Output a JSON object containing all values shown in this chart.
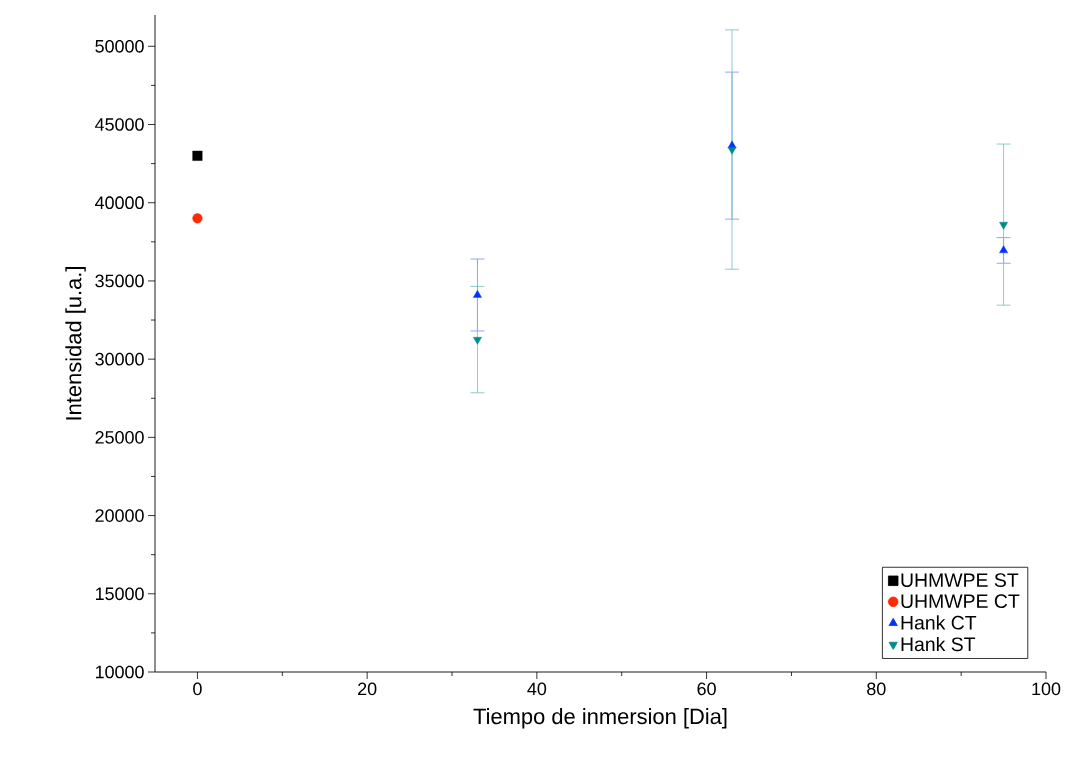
{
  "chart_data": {
    "type": "scatter",
    "xlabel": "Tiempo de inmersion [Dia]",
    "ylabel": "Intensidad [u.a.]",
    "xlim": [
      -5,
      100
    ],
    "ylim": [
      10000,
      52000
    ],
    "xticks": [
      0,
      20,
      40,
      60,
      80,
      100
    ],
    "yticks": [
      10000,
      15000,
      20000,
      25000,
      30000,
      35000,
      40000,
      45000,
      50000
    ],
    "legend": "bottom right",
    "series": [
      {
        "name": "UHMWPE ST",
        "color": "#000000",
        "marker": "square",
        "x": [
          0
        ],
        "values": [
          43000
        ]
      },
      {
        "name": "UHMWPE CT",
        "color": "#ff2a00",
        "marker": "circle",
        "x": [
          0
        ],
        "values": [
          39000
        ]
      },
      {
        "name": "Hank CT",
        "color": "#0033ff",
        "marker": "triangle",
        "x": [
          33,
          63,
          95
        ],
        "values": [
          34100,
          43650,
          36950
        ],
        "errors": [
          2300,
          4700,
          820
        ]
      },
      {
        "name": "Hank ST",
        "color": "#008b8b",
        "marker": "triangle down",
        "x": [
          33,
          63,
          95
        ],
        "values": [
          31250,
          43400,
          38600
        ],
        "errors": [
          3400,
          7650,
          5150
        ]
      }
    ]
  }
}
